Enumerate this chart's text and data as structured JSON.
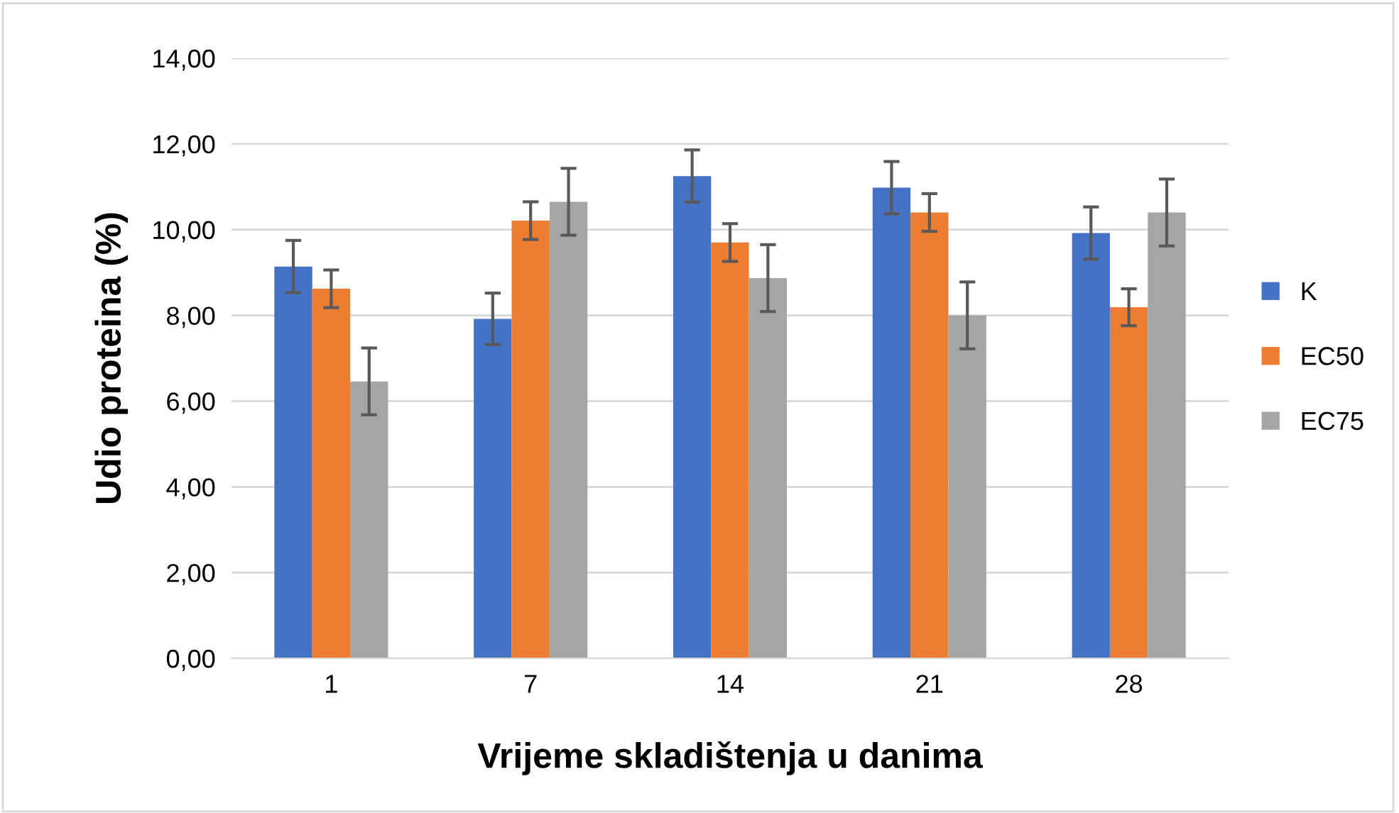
{
  "chart_data": {
    "type": "bar",
    "xlabel": "Vrijeme skladištenja u danima",
    "ylabel": "Udio proteina (%)",
    "categories": [
      "1",
      "7",
      "14",
      "21",
      "28"
    ],
    "series": [
      {
        "name": "K",
        "color": "#4472c4",
        "values": [
          9.14,
          7.92,
          11.25,
          10.98,
          9.92
        ],
        "errors": [
          0.61,
          0.6,
          0.61,
          0.61,
          0.61
        ]
      },
      {
        "name": "EC50",
        "color": "#ed7d31",
        "values": [
          8.62,
          10.21,
          9.7,
          10.4,
          8.19
        ],
        "errors": [
          0.44,
          0.44,
          0.44,
          0.44,
          0.43
        ]
      },
      {
        "name": "EC75",
        "color": "#a5a5a5",
        "values": [
          6.46,
          10.65,
          8.87,
          8.0,
          10.4
        ],
        "errors": [
          0.78,
          0.78,
          0.78,
          0.78,
          0.78
        ]
      }
    ],
    "ylim": [
      0,
      14
    ],
    "yticks": [
      {
        "value": 0,
        "label": "0,00"
      },
      {
        "value": 2,
        "label": "2,00"
      },
      {
        "value": 4,
        "label": "4,00"
      },
      {
        "value": 6,
        "label": "6,00"
      },
      {
        "value": 8,
        "label": "8,00"
      },
      {
        "value": 10,
        "label": "10,00"
      },
      {
        "value": 12,
        "label": "12,00"
      },
      {
        "value": 14,
        "label": "14,00"
      }
    ],
    "grid": "y",
    "legend": "right"
  }
}
